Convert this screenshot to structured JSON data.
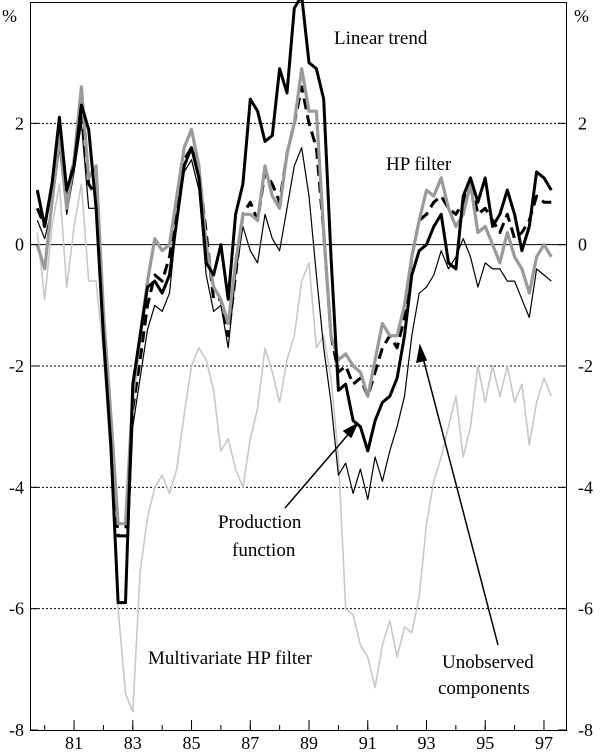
{
  "chart_data": {
    "type": "line",
    "unit_left": "%",
    "unit_right": "%",
    "xlim": [
      79.5,
      97.75
    ],
    "ylim": [
      -8,
      4
    ],
    "x_ticks": [
      81,
      83,
      85,
      87,
      89,
      91,
      93,
      95,
      97
    ],
    "x_tick_labels": [
      "81",
      "83",
      "85",
      "87",
      "89",
      "91",
      "93",
      "95",
      "97"
    ],
    "y_ticks": [
      -8,
      -6,
      -4,
      -2,
      0,
      2
    ],
    "y_tick_labels": [
      "-8",
      "-6",
      "-4",
      "-2",
      "0",
      "2"
    ],
    "gridlines": [
      -6,
      -4,
      -2,
      2
    ],
    "zero_line": 0,
    "series": [
      {
        "name": "Multivariate HP filter",
        "color": "#c8c8c8",
        "x_start": 79.75,
        "x_step": 0.25,
        "values": [
          0.2,
          -0.9,
          0.3,
          1.0,
          -0.7,
          0.3,
          1.0,
          -0.6,
          -0.6,
          -1.8,
          -3.5,
          -6.0,
          -7.4,
          -7.7,
          -5.4,
          -4.5,
          -4.0,
          -3.8,
          -4.1,
          -3.7,
          -2.8,
          -2.0,
          -1.7,
          -1.9,
          -2.4,
          -3.4,
          -3.2,
          -3.7,
          -4.0,
          -3.2,
          -2.7,
          -1.7,
          -2.1,
          -2.6,
          -1.9,
          -1.5,
          -0.6,
          -0.3,
          -1.7,
          -1.5,
          -2.2,
          -3.5,
          -6.0,
          -6.1,
          -6.6,
          -6.8,
          -7.3,
          -6.6,
          -6.2,
          -6.8,
          -6.3,
          -6.4,
          -5.8,
          -4.6,
          -3.9,
          -3.5,
          -3.0,
          -2.5,
          -3.5,
          -3.0,
          -2.0,
          -2.6,
          -2.0,
          -2.5,
          -2.0,
          -2.6,
          -2.3,
          -3.3,
          -2.6,
          -2.2,
          -2.5
        ]
      },
      {
        "name": "Production function",
        "color": "#000000",
        "x_start": 79.75,
        "x_step": 0.25,
        "values": [
          0.4,
          0.1,
          0.6,
          1.6,
          0.5,
          1.2,
          2.0,
          0.6,
          0.6,
          -1.7,
          -3.4,
          -5.9,
          -5.9,
          -3.0,
          -2.2,
          -1.4,
          -1.0,
          -1.1,
          -0.8,
          0.4,
          1.2,
          1.4,
          0.9,
          -0.5,
          -1.1,
          -1.0,
          -1.7,
          -0.5,
          0.3,
          -0.1,
          -0.3,
          0.5,
          0.1,
          -0.1,
          0.6,
          1.3,
          1.6,
          0.8,
          -0.5,
          -1.7,
          -2.6,
          -3.8,
          -3.6,
          -4.1,
          -3.7,
          -4.2,
          -3.5,
          -3.9,
          -3.4,
          -3.0,
          -2.5,
          -1.5,
          -0.8,
          -0.7,
          -0.5,
          -0.1,
          -0.4,
          -0.2,
          0.1,
          -0.2,
          -0.7,
          -0.3,
          -0.4,
          -0.4,
          -0.6,
          -0.6,
          -0.9,
          -1.2,
          -0.4,
          -0.5,
          -0.6
        ]
      },
      {
        "name": "Unobserved components",
        "color": "#000000",
        "dashed": true,
        "x_start": 79.75,
        "x_step": 0.25,
        "values": [
          0.6,
          0.3,
          1.0,
          1.9,
          0.8,
          1.4,
          2.2,
          1.0,
          0.8,
          -1.4,
          -3.0,
          -4.8,
          -4.8,
          -2.7,
          -1.9,
          -1.0,
          -0.5,
          -0.6,
          -0.2,
          0.6,
          1.4,
          1.6,
          1.2,
          0.2,
          -0.9,
          -0.9,
          -1.5,
          -0.5,
          0.5,
          0.7,
          0.4,
          1.2,
          1.0,
          0.7,
          1.5,
          2.0,
          2.6,
          2.0,
          1.6,
          0.2,
          -1.5,
          -2.1,
          -2.0,
          -2.3,
          -2.2,
          -2.5,
          -2.1,
          -1.7,
          -1.5,
          -1.7,
          -1.2,
          -0.2,
          0.4,
          0.5,
          0.7,
          0.8,
          0.6,
          0.5,
          0.7,
          1.1,
          0.5,
          0.6,
          0.4,
          0.2,
          0.5,
          0.1,
          0.2,
          0.4,
          0.8,
          0.7,
          0.7
        ]
      },
      {
        "name": "HP filter",
        "color": "#9a9a9a",
        "x_start": 79.75,
        "x_step": 0.25,
        "values": [
          0.0,
          -0.4,
          0.7,
          1.8,
          0.6,
          1.4,
          2.6,
          1.1,
          1.3,
          -1.1,
          -2.8,
          -4.6,
          -4.6,
          -2.5,
          -1.5,
          -0.6,
          0.1,
          -0.1,
          0.0,
          0.8,
          1.6,
          1.9,
          1.3,
          0.0,
          -0.7,
          -0.9,
          -1.3,
          -0.3,
          0.5,
          0.5,
          0.4,
          1.3,
          0.8,
          0.6,
          1.5,
          2.0,
          2.9,
          2.2,
          2.2,
          0.2,
          -1.5,
          -1.9,
          -1.8,
          -2.0,
          -2.1,
          -2.5,
          -1.9,
          -1.3,
          -1.5,
          -1.5,
          -1.0,
          -0.2,
          0.4,
          0.9,
          0.8,
          1.1,
          0.6,
          0.3,
          0.5,
          1.0,
          0.2,
          0.3,
          0.0,
          -0.3,
          0.2,
          -0.2,
          -0.4,
          -0.8,
          -0.2,
          0.0,
          -0.2
        ]
      },
      {
        "name": "Linear trend",
        "color": "#000000",
        "x_start": 79.75,
        "x_step": 0.25,
        "values": [
          0.9,
          0.3,
          1.0,
          2.1,
          0.9,
          1.3,
          2.3,
          1.9,
          0.6,
          -1.5,
          -3.3,
          -5.9,
          -5.9,
          -2.3,
          -1.5,
          -0.7,
          -0.6,
          -0.8,
          -0.5,
          0.4,
          1.3,
          1.6,
          1.1,
          -0.3,
          -0.5,
          0.0,
          -0.9,
          0.5,
          1.0,
          2.4,
          2.2,
          1.7,
          1.8,
          2.9,
          2.5,
          3.9,
          4.1,
          3.0,
          2.9,
          2.4,
          -0.2,
          -2.4,
          -2.3,
          -2.9,
          -3.0,
          -3.4,
          -2.9,
          -2.6,
          -2.5,
          -2.2,
          -1.5,
          -0.5,
          -0.1,
          0.0,
          0.3,
          0.5,
          -0.3,
          -0.4,
          0.8,
          1.1,
          0.7,
          1.1,
          0.3,
          0.5,
          0.9,
          0.5,
          -0.1,
          0.3,
          1.2,
          1.1,
          0.9
        ]
      }
    ],
    "annotations": {
      "linear_trend": "Linear trend",
      "hp_filter": "HP filter",
      "production_function_1": "Production",
      "production_function_2": "function",
      "multivariate": "Multivariate HP filter",
      "unobserved_1": "Unobserved",
      "unobserved_2": "components"
    }
  }
}
